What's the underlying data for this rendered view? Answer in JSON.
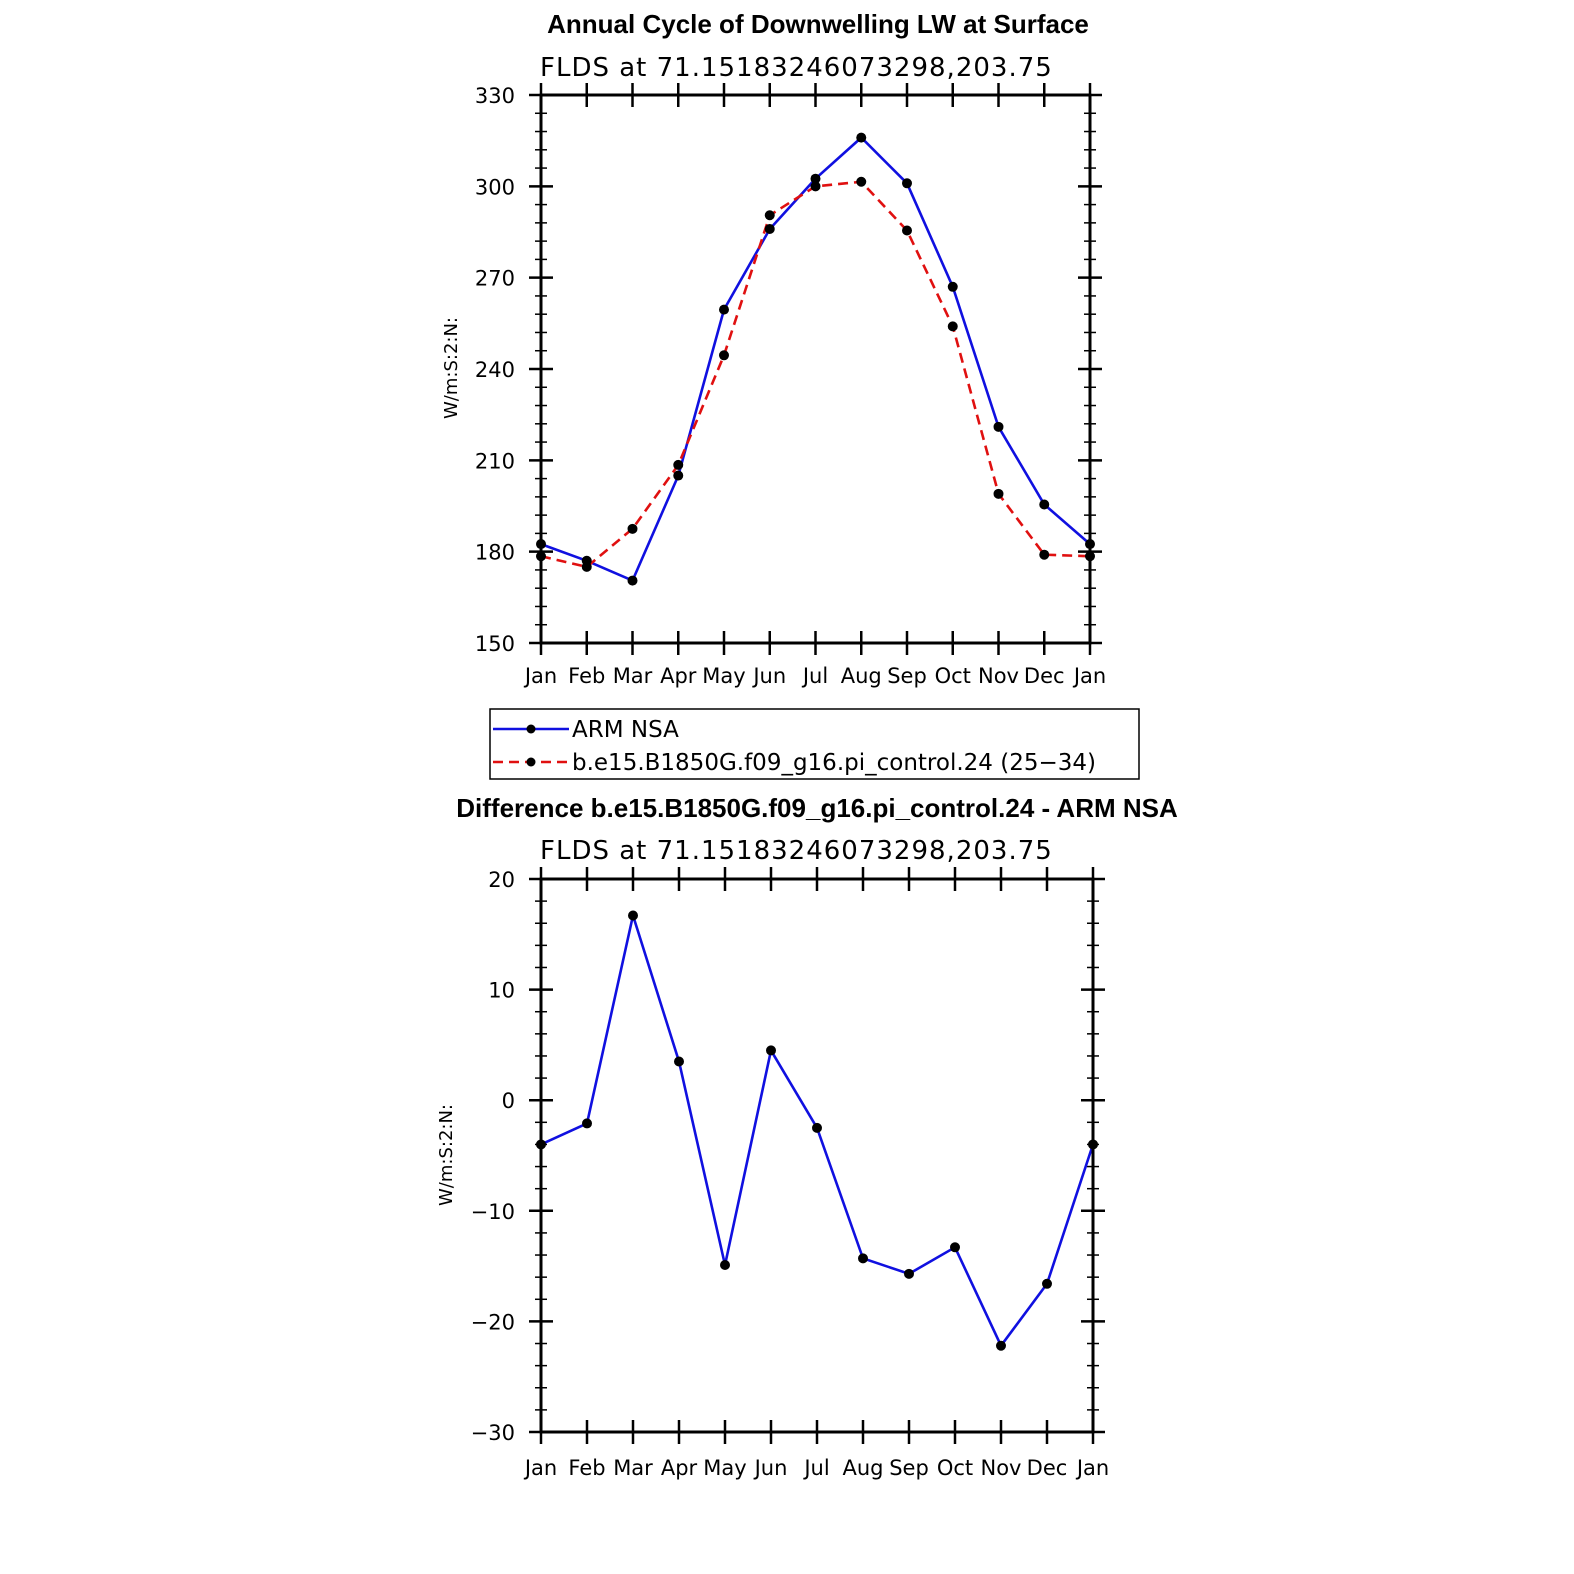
{
  "chart_data": [
    {
      "type": "line",
      "title": "Annual Cycle of Downwelling LW at Surface",
      "subtitle": "FLDS at 71.15183246073298,203.75",
      "ylabel": "W/m:S:2:N:",
      "xlabel": "",
      "categories": [
        "Jan",
        "Feb",
        "Mar",
        "Apr",
        "May",
        "Jun",
        "Jul",
        "Aug",
        "Sep",
        "Oct",
        "Nov",
        "Dec",
        "Jan"
      ],
      "ylim": [
        150,
        330
      ],
      "yticks": [
        150,
        180,
        210,
        240,
        270,
        300,
        330
      ],
      "legend_position": "below",
      "series": [
        {
          "name": "ARM NSA",
          "color": "#1010e0",
          "dash": "solid",
          "values": [
            182.5,
            177,
            170.5,
            205,
            259.5,
            286,
            302.5,
            316,
            301,
            267,
            221,
            195.5,
            182.5
          ]
        },
        {
          "name": "b.e15.B1850G.f09_g16.pi_control.24 (25−34)",
          "color": "#e01010",
          "dash": "dashed",
          "values": [
            178.5,
            175,
            187.5,
            208.5,
            244.5,
            290.5,
            300,
            301.5,
            285.5,
            254,
            199,
            179,
            178.5
          ]
        }
      ]
    },
    {
      "type": "line",
      "title": "Difference b.e15.B1850G.f09_g16.pi_control.24 - ARM NSA",
      "subtitle": "FLDS at 71.15183246073298,203.75",
      "ylabel": "W/m:S:2:N:",
      "xlabel": "",
      "categories": [
        "Jan",
        "Feb",
        "Mar",
        "Apr",
        "May",
        "Jun",
        "Jul",
        "Aug",
        "Sep",
        "Oct",
        "Nov",
        "Dec",
        "Jan"
      ],
      "ylim": [
        -30,
        20
      ],
      "yticks": [
        -30,
        -20,
        -10,
        0,
        10,
        20
      ],
      "ytick_labels": [
        "−30",
        "−20",
        "−10",
        "0",
        "10",
        "20"
      ],
      "series": [
        {
          "name": "Difference",
          "color": "#1010e0",
          "dash": "solid",
          "values": [
            -4,
            -2.1,
            16.7,
            3.5,
            -14.9,
            4.5,
            -2.5,
            -14.3,
            -15.7,
            -13.3,
            -22.2,
            -16.6,
            -4
          ]
        }
      ]
    }
  ]
}
